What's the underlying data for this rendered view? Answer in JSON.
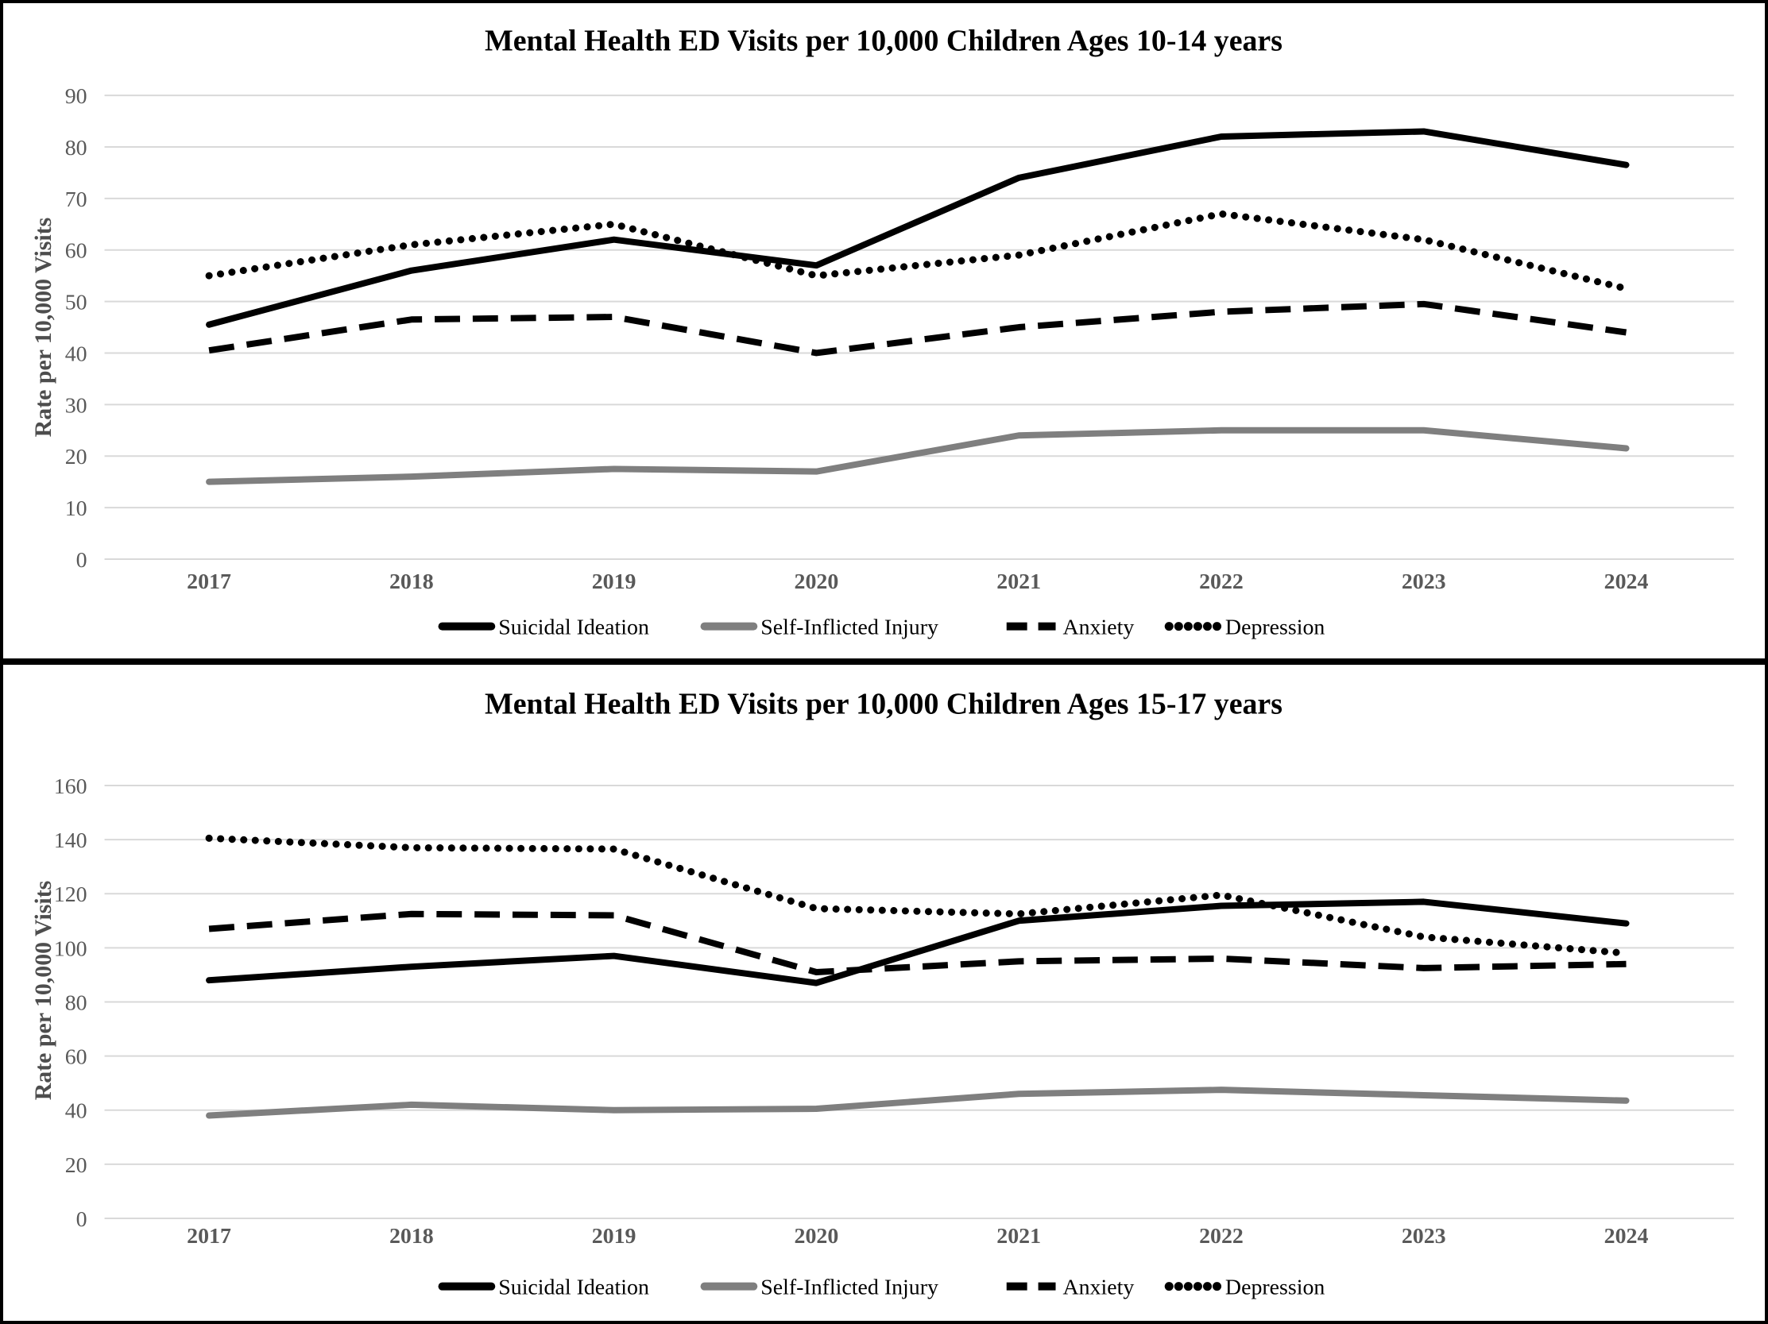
{
  "page_title": "Mental Health ED Visits",
  "chart_data": [
    {
      "type": "line",
      "title": "Mental Health ED Visits per 10,000 Children Ages 10-14 years",
      "xlabel": "",
      "ylabel": "Rate per 10,000 Visits",
      "categories": [
        "2017",
        "2018",
        "2019",
        "2020",
        "2021",
        "2022",
        "2023",
        "2024"
      ],
      "ylim": [
        0,
        90
      ],
      "ytick_step": 10,
      "grid": true,
      "legend_position": "bottom",
      "series": [
        {
          "name": "Suicidal Ideation",
          "style": "solid",
          "color": "#000000",
          "values": [
            45.5,
            56,
            62,
            57,
            74,
            82,
            83,
            76.5
          ]
        },
        {
          "name": "Self-Inflicted Injury",
          "style": "solid",
          "color": "#7f7f7f",
          "values": [
            15,
            16,
            17.5,
            17,
            24,
            25,
            25,
            21.5
          ]
        },
        {
          "name": "Anxiety",
          "style": "dashed",
          "color": "#000000",
          "values": [
            40.5,
            46.5,
            47,
            40,
            45,
            48,
            49.5,
            44
          ]
        },
        {
          "name": "Depression",
          "style": "dotted",
          "color": "#000000",
          "values": [
            55,
            61,
            65,
            55,
            59,
            67,
            62,
            52.5
          ]
        }
      ]
    },
    {
      "type": "line",
      "title": "Mental Health ED Visits per 10,000 Children Ages 15-17 years",
      "xlabel": "",
      "ylabel": "Rate per 10,000 Visits",
      "categories": [
        "2017",
        "2018",
        "2019",
        "2020",
        "2021",
        "2022",
        "2023",
        "2024"
      ],
      "ylim": [
        0,
        160
      ],
      "ytick_step": 20,
      "grid": true,
      "legend_position": "bottom",
      "series": [
        {
          "name": "Suicidal Ideation",
          "style": "solid",
          "color": "#000000",
          "values": [
            88,
            93,
            97,
            87,
            110,
            115.5,
            117,
            109
          ]
        },
        {
          "name": "Self-Inflicted Injury",
          "style": "solid",
          "color": "#7f7f7f",
          "values": [
            38,
            42,
            40,
            40.5,
            46,
            47.5,
            45.5,
            43.5
          ]
        },
        {
          "name": "Anxiety",
          "style": "dashed",
          "color": "#000000",
          "values": [
            107,
            112.5,
            112,
            91,
            95,
            96,
            92.5,
            94
          ]
        },
        {
          "name": "Depression",
          "style": "dotted",
          "color": "#000000",
          "values": [
            140.5,
            137,
            136.5,
            114.5,
            112.5,
            119.5,
            104,
            98
          ]
        }
      ]
    }
  ]
}
